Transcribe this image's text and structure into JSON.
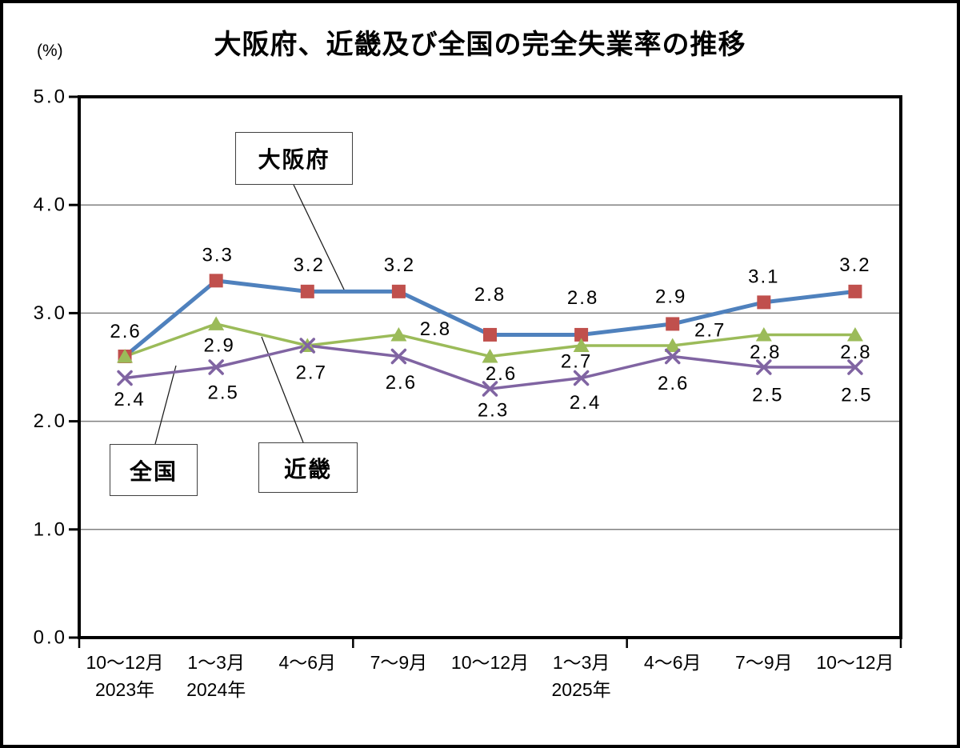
{
  "chart_data": {
    "type": "line",
    "title": "大阪府、近畿及び全国の完全失業率の推移",
    "unit": "(%)",
    "categories": [
      "10～12月",
      "1～3月",
      "4～6月",
      "7～9月",
      "10～12月",
      "1～3月",
      "4～6月",
      "7～9月",
      "10～12月"
    ],
    "category_year_labels": [
      {
        "index": 0,
        "label": "2023年"
      },
      {
        "index": 1,
        "label": "2024年"
      },
      {
        "index": 5,
        "label": "2025年"
      }
    ],
    "ylim": [
      0.0,
      5.0
    ],
    "ytick_labels": [
      "5.0",
      "4.0",
      "3.0",
      "2.0",
      "1.0",
      "0.0"
    ],
    "grid": true,
    "legend_position": "annotation-boxes-with-leader-lines",
    "series": [
      {
        "id": "osaka",
        "name": "大阪府",
        "values": [
          2.6,
          3.3,
          3.2,
          3.2,
          2.8,
          2.8,
          2.9,
          3.1,
          3.2
        ],
        "line_color": "#4F81BD",
        "marker": "square",
        "marker_color": "#C0504D"
      },
      {
        "id": "kinki",
        "name": "近畿",
        "values": [
          2.6,
          2.9,
          2.7,
          2.8,
          2.6,
          2.7,
          2.7,
          2.8,
          2.8
        ],
        "line_color": "#9BBB59",
        "marker": "triangle",
        "marker_color": "#9BBB59"
      },
      {
        "id": "zenkoku",
        "name": "全国",
        "values": [
          2.4,
          2.5,
          2.7,
          2.6,
          2.3,
          2.4,
          2.6,
          2.5,
          2.5
        ],
        "line_color": "#8064A2",
        "marker": "x",
        "marker_color": "#8064A2"
      }
    ],
    "annotations": [
      {
        "id": "osaka",
        "label": "大阪府"
      },
      {
        "id": "kinki",
        "label": "近畿"
      },
      {
        "id": "zenkoku",
        "label": "全国"
      }
    ],
    "colors": {
      "axis": "#000000",
      "gridline": "#808080",
      "text": "#000000",
      "background": "#ffffff"
    }
  }
}
